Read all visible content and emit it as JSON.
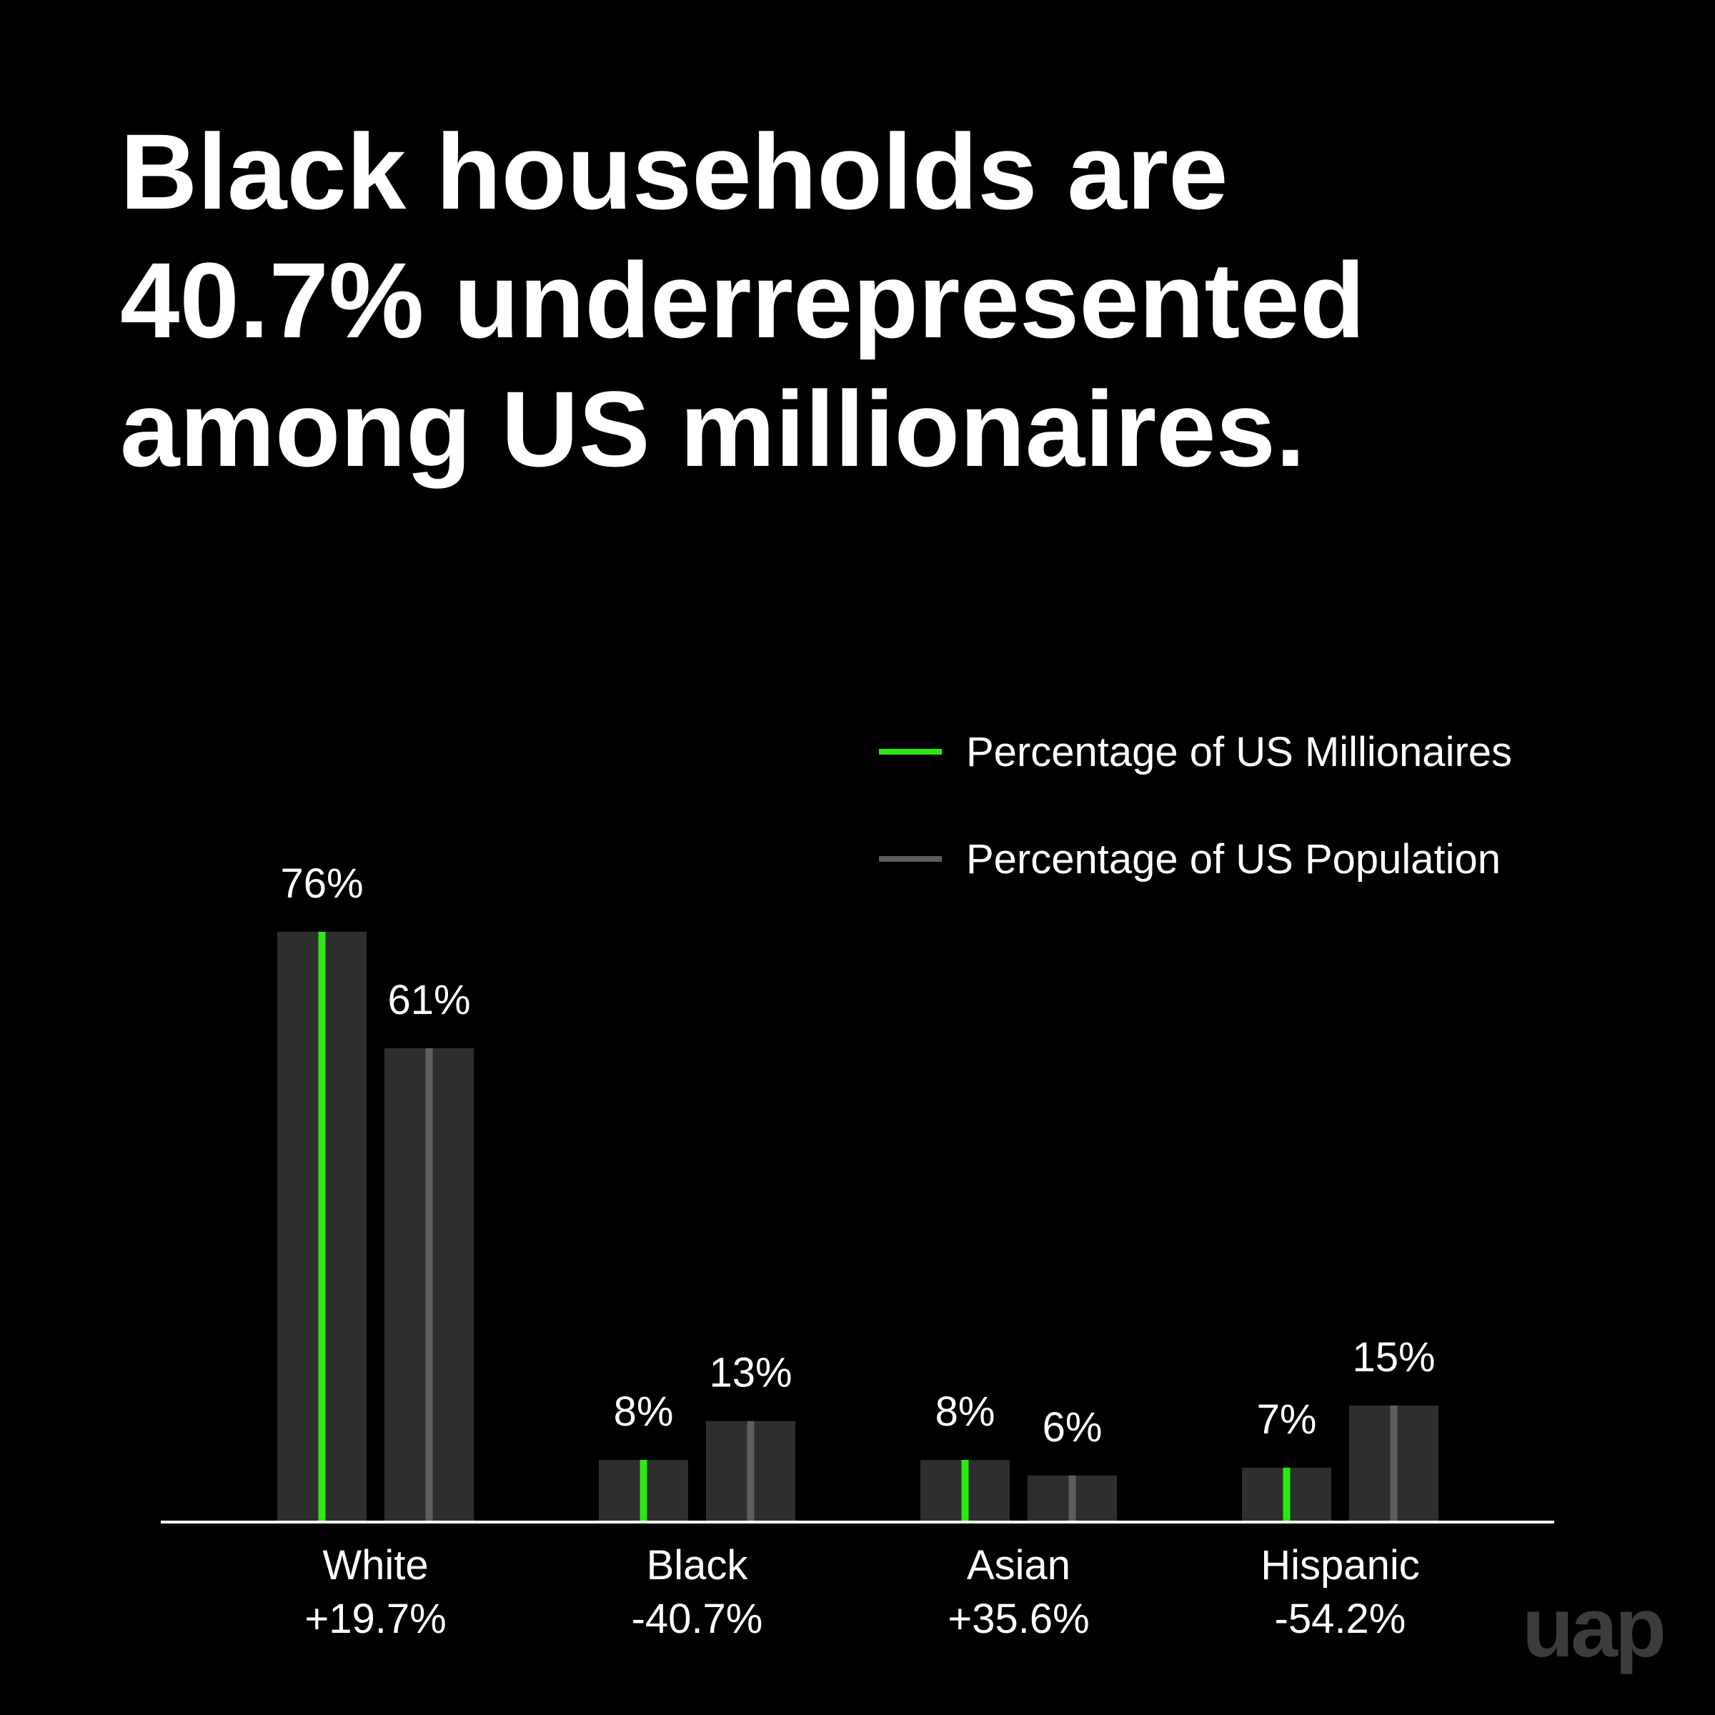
{
  "chart_data": {
    "type": "bar",
    "title": [
      "Black households are",
      "40.7% underrepresented",
      "among US millionaires."
    ],
    "categories": [
      "White",
      "Black",
      "Asian",
      "Hispanic"
    ],
    "category_notes": [
      "+19.7%",
      "-40.7%",
      "+35.6%",
      "-54.2%"
    ],
    "series": [
      {
        "name": "Percentage of US Millionaires",
        "values": [
          76,
          8,
          8,
          7
        ],
        "labels": [
          "76%",
          "8%",
          "8%",
          "7%"
        ],
        "color": "#2bea12"
      },
      {
        "name": "Percentage of US Population",
        "values": [
          61,
          13,
          6,
          15
        ],
        "labels": [
          "61%",
          "13%",
          "6%",
          "15%"
        ],
        "color": "#5e5e5e"
      }
    ],
    "ylim": [
      0,
      80
    ],
    "grid": false,
    "legend": "top-right",
    "bar_fill": "#2e2e2e",
    "axis_color": "#ffffff"
  },
  "branding": {
    "logo_text": "uap",
    "logo_color": "#3c3c3c"
  }
}
